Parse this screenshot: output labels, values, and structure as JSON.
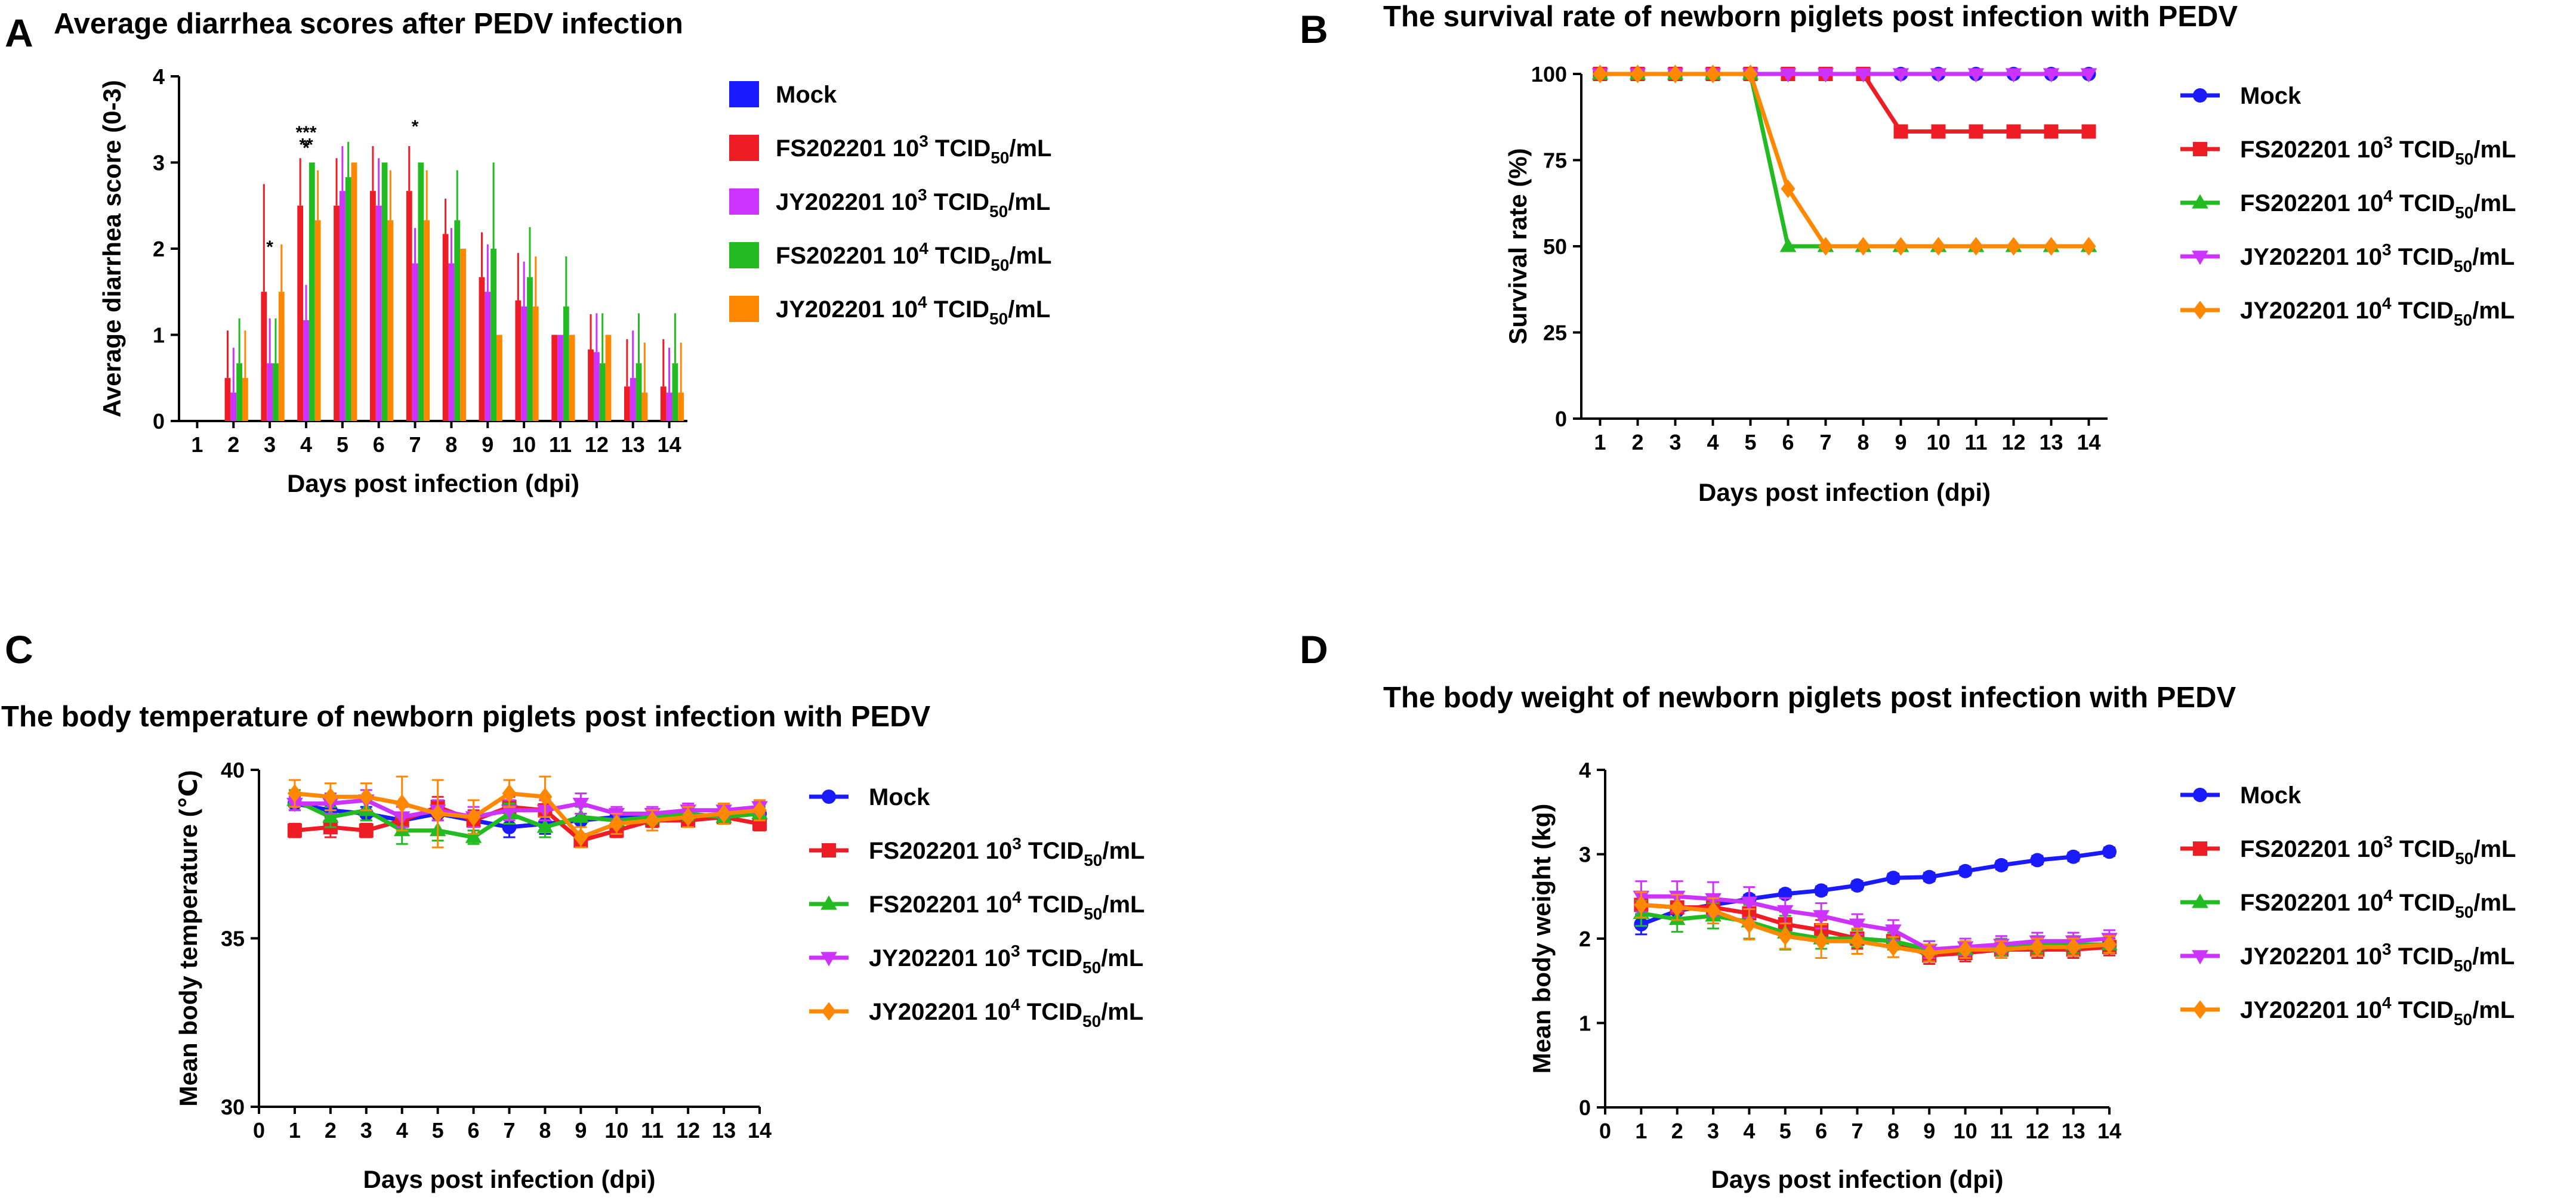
{
  "colors": {
    "mock": "#1a1aff",
    "fs3": "#ee1c25",
    "jy3": "#cc33ff",
    "fs4": "#22bb22",
    "jy4": "#ff8800"
  },
  "chart_data": [
    {
      "panel": "A",
      "type": "bar",
      "title": "Average diarrhea scores after PEDV infection",
      "xlabel": "Days post infection (dpi)",
      "ylabel": "Average diarrhea score (0-3)",
      "ylim": [
        0,
        4
      ],
      "yticks": [
        "0",
        "1",
        "2",
        "3",
        "4"
      ],
      "categories": [
        "1",
        "2",
        "3",
        "4",
        "5",
        "6",
        "7",
        "8",
        "9",
        "10",
        "11",
        "12",
        "13",
        "14"
      ],
      "series": [
        {
          "key": "mock",
          "prefix": "Mock",
          "exp": "",
          "unit": "",
          "values": [
            0,
            0,
            0,
            0,
            0,
            0,
            0,
            0,
            0,
            0,
            0,
            0,
            0,
            0
          ],
          "errors": [
            0,
            0,
            0,
            0,
            0,
            0,
            0,
            0,
            0,
            0,
            0,
            0,
            0,
            0
          ]
        },
        {
          "key": "fs3",
          "prefix": "FS202201 10",
          "exp": "3",
          "unit": " TCID",
          "sub": "50",
          "suffix": "/mL",
          "values": [
            0,
            0.5,
            1.5,
            2.5,
            2.5,
            2.67,
            2.67,
            2.17,
            1.67,
            1.4,
            1.0,
            0.83,
            0.4,
            0.4
          ],
          "errors": [
            0,
            0.55,
            1.25,
            0.55,
            0.55,
            0.52,
            0.52,
            0.41,
            0.52,
            0.55,
            0,
            0.41,
            0.55,
            0.55
          ]
        },
        {
          "key": "jy3",
          "prefix": "JY202201 10",
          "exp": "3",
          "unit": " TCID",
          "sub": "50",
          "suffix": "/mL",
          "values": [
            0,
            0.33,
            0.67,
            1.17,
            2.67,
            2.5,
            1.83,
            1.83,
            1.5,
            1.33,
            1.0,
            0.8,
            0.5,
            0.33
          ],
          "errors": [
            0,
            0.52,
            0.52,
            0.41,
            0.52,
            0.55,
            0.41,
            0.41,
            0.55,
            0.52,
            0,
            0.45,
            0.55,
            0.52
          ]
        },
        {
          "key": "fs4",
          "prefix": "FS202201 10",
          "exp": "4",
          "unit": " TCID",
          "sub": "50",
          "suffix": "/mL",
          "values": [
            0,
            0.67,
            0.67,
            3.0,
            2.83,
            3.0,
            3.0,
            2.33,
            2.0,
            1.67,
            1.33,
            0.67,
            0.67,
            0.67
          ],
          "errors": [
            0,
            0.52,
            0.52,
            0,
            0.41,
            0,
            0,
            0.58,
            1.0,
            0.58,
            0.58,
            0.58,
            0.58,
            0.58
          ]
        },
        {
          "key": "jy4",
          "prefix": "JY202201 10",
          "exp": "4",
          "unit": " TCID",
          "sub": "50",
          "suffix": "/mL",
          "values": [
            0,
            0.5,
            1.5,
            2.33,
            3.0,
            2.33,
            2.33,
            2.0,
            1.0,
            1.33,
            1.0,
            1.0,
            0.33,
            0.33
          ],
          "errors": [
            0,
            0.55,
            0.55,
            0.58,
            0,
            0.58,
            0.58,
            0,
            0,
            0.58,
            0,
            0,
            0.58,
            0.58
          ]
        }
      ],
      "annotations": [
        {
          "text": "*",
          "day": "3",
          "y": 1.95
        },
        {
          "text": "***",
          "day": "4",
          "y": 3.28
        },
        {
          "text": "**",
          "day": "4",
          "y": 3.14
        },
        {
          "text": "*",
          "day": "4",
          "y": 3.1
        },
        {
          "text": "*",
          "day": "7",
          "y": 3.35
        }
      ]
    },
    {
      "panel": "B",
      "type": "line",
      "title": "The survival rate of newborn piglets post infection with PEDV",
      "xlabel": "Days post infection (dpi)",
      "ylabel": "Survival rate (%)",
      "ylim": [
        0,
        100
      ],
      "yticks": [
        "0",
        "25",
        "50",
        "75",
        "100"
      ],
      "x": [
        "1",
        "2",
        "3",
        "4",
        "5",
        "6",
        "7",
        "8",
        "9",
        "10",
        "11",
        "12",
        "13",
        "14"
      ],
      "series": [
        {
          "key": "mock",
          "marker": "circle",
          "prefix": "Mock",
          "exp": "",
          "values": [
            100,
            100,
            100,
            100,
            100,
            100,
            100,
            100,
            100,
            100,
            100,
            100,
            100,
            100
          ]
        },
        {
          "key": "fs3",
          "marker": "square",
          "prefix": "FS202201 10",
          "exp": "3",
          "unit": " TCID",
          "sub": "50",
          "suffix": "/mL",
          "values": [
            100,
            100,
            100,
            100,
            100,
            100,
            100,
            100,
            83.3,
            83.3,
            83.3,
            83.3,
            83.3,
            83.3
          ]
        },
        {
          "key": "fs4",
          "marker": "triangle-up",
          "prefix": "FS202201 10",
          "exp": "4",
          "unit": " TCID",
          "sub": "50",
          "suffix": "/mL",
          "values": [
            100,
            100,
            100,
            100,
            100,
            50,
            50,
            50,
            50,
            50,
            50,
            50,
            50,
            50
          ]
        },
        {
          "key": "jy3",
          "marker": "triangle-down",
          "prefix": "JY202201 10",
          "exp": "3",
          "unit": " TCID",
          "sub": "50",
          "suffix": "/mL",
          "values": [
            100,
            100,
            100,
            100,
            100,
            100,
            100,
            100,
            100,
            100,
            100,
            100,
            100,
            100
          ]
        },
        {
          "key": "jy4",
          "marker": "diamond",
          "prefix": "JY202201 10",
          "exp": "4",
          "unit": " TCID",
          "sub": "50",
          "suffix": "/mL",
          "values": [
            100,
            100,
            100,
            100,
            100,
            66.7,
            50,
            50,
            50,
            50,
            50,
            50,
            50,
            50
          ]
        }
      ]
    },
    {
      "panel": "C",
      "type": "line",
      "title": "The body temperature of newborn piglets post infection with PEDV",
      "xlabel": "Days post infection (dpi)",
      "ylabel": "Mean body temperature (℃)",
      "ylim": [
        30,
        40
      ],
      "xlim": [
        0,
        14
      ],
      "yticks": [
        "30",
        "35",
        "40"
      ],
      "xticks": [
        "0",
        "1",
        "2",
        "3",
        "4",
        "5",
        "6",
        "7",
        "8",
        "9",
        "10",
        "11",
        "12",
        "13",
        "14"
      ],
      "x": [
        1,
        2,
        3,
        4,
        5,
        6,
        7,
        8,
        9,
        10,
        11,
        12,
        13,
        14
      ],
      "series": [
        {
          "key": "mock",
          "marker": "circle",
          "prefix": "Mock",
          "exp": "",
          "values": [
            39.0,
            38.8,
            38.7,
            38.5,
            38.7,
            38.5,
            38.3,
            38.4,
            38.5,
            38.6,
            38.6,
            38.6,
            38.7,
            38.7
          ],
          "errors": [
            0.2,
            0.2,
            0.2,
            0.2,
            0.2,
            0.2,
            0.3,
            0.3,
            0.2,
            0.2,
            0.2,
            0.2,
            0.2,
            0.2
          ]
        },
        {
          "key": "fs3",
          "marker": "square",
          "prefix": "FS202201 10",
          "exp": "3",
          "unit": " TCID",
          "sub": "50",
          "suffix": "/mL",
          "values": [
            38.2,
            38.3,
            38.2,
            38.5,
            38.9,
            38.5,
            38.9,
            38.8,
            37.9,
            38.2,
            38.5,
            38.5,
            38.6,
            38.4
          ],
          "errors": [
            0.2,
            0.3,
            0.2,
            0.2,
            0.3,
            0.3,
            0.3,
            0.3,
            0.2,
            0.2,
            0.2,
            0.2,
            0.2,
            0.2
          ]
        },
        {
          "key": "fs4",
          "marker": "triangle-up",
          "prefix": "FS202201 10",
          "exp": "4",
          "unit": " TCID",
          "sub": "50",
          "suffix": "/mL",
          "values": [
            39.1,
            38.6,
            38.8,
            38.2,
            38.2,
            38.0,
            38.7,
            38.3,
            38.6,
            38.5,
            38.6,
            38.7,
            38.6,
            38.7
          ],
          "errors": [
            0.3,
            0.3,
            0.3,
            0.4,
            0.3,
            0.2,
            0.3,
            0.3,
            0.3,
            0.2,
            0.2,
            0.2,
            0.2,
            0.2
          ]
        },
        {
          "key": "jy3",
          "marker": "triangle-down",
          "prefix": "JY202201 10",
          "exp": "3",
          "unit": " TCID",
          "sub": "50",
          "suffix": "/mL",
          "values": [
            39.0,
            39.0,
            39.1,
            38.6,
            38.8,
            38.6,
            38.8,
            38.8,
            39.0,
            38.7,
            38.7,
            38.8,
            38.8,
            38.9
          ],
          "errors": [
            0.2,
            0.3,
            0.3,
            0.3,
            0.3,
            0.3,
            0.3,
            0.3,
            0.3,
            0.2,
            0.2,
            0.2,
            0.2,
            0.2
          ]
        },
        {
          "key": "jy4",
          "marker": "diamond",
          "prefix": "JY202201 10",
          "exp": "4",
          "unit": " TCID",
          "sub": "50",
          "suffix": "/mL",
          "values": [
            39.3,
            39.2,
            39.2,
            39.0,
            38.7,
            38.6,
            39.3,
            39.2,
            38.0,
            38.4,
            38.5,
            38.6,
            38.7,
            38.8
          ],
          "errors": [
            0.4,
            0.4,
            0.4,
            0.8,
            1.0,
            0.5,
            0.4,
            0.6,
            0.3,
            0.3,
            0.3,
            0.3,
            0.3,
            0.3
          ]
        }
      ]
    },
    {
      "panel": "D",
      "type": "line",
      "title": "The body weight of newborn piglets post infection with PEDV",
      "xlabel": "Days post infection (dpi)",
      "ylabel": "Mean body weight (kg)",
      "ylim": [
        0,
        4
      ],
      "xlim": [
        0,
        14
      ],
      "yticks": [
        "0",
        "1",
        "2",
        "3",
        "4"
      ],
      "xticks": [
        "0",
        "1",
        "2",
        "3",
        "4",
        "5",
        "6",
        "7",
        "8",
        "9",
        "10",
        "11",
        "12",
        "13",
        "14"
      ],
      "x": [
        1,
        2,
        3,
        4,
        5,
        6,
        7,
        8,
        9,
        10,
        11,
        12,
        13,
        14
      ],
      "series": [
        {
          "key": "mock",
          "marker": "circle",
          "prefix": "Mock",
          "exp": "",
          "values": [
            2.17,
            2.33,
            2.4,
            2.47,
            2.53,
            2.57,
            2.63,
            2.72,
            2.73,
            2.8,
            2.87,
            2.93,
            2.97,
            3.03
          ],
          "errors": [
            0.12,
            0.1,
            0.08,
            0.05,
            0.05,
            0.05,
            0.05,
            0.05,
            0.05,
            0.05,
            0.05,
            0.05,
            0.05,
            0.05
          ]
        },
        {
          "key": "fs3",
          "marker": "square",
          "prefix": "FS202201 10",
          "exp": "3",
          "unit": " TCID",
          "sub": "50",
          "suffix": "/mL",
          "values": [
            2.4,
            2.37,
            2.37,
            2.3,
            2.17,
            2.1,
            2.0,
            1.97,
            1.8,
            1.83,
            1.87,
            1.87,
            1.87,
            1.9
          ],
          "errors": [
            0.15,
            0.15,
            0.15,
            0.15,
            0.15,
            0.12,
            0.12,
            0.1,
            0.1,
            0.1,
            0.1,
            0.1,
            0.1,
            0.1
          ]
        },
        {
          "key": "fs4",
          "marker": "triangle-up",
          "prefix": "FS202201 10",
          "exp": "4",
          "unit": " TCID",
          "sub": "50",
          "suffix": "/mL",
          "values": [
            2.3,
            2.23,
            2.27,
            2.2,
            2.07,
            2.0,
            2.0,
            1.97,
            1.87,
            1.87,
            1.9,
            1.93,
            1.93,
            1.93
          ],
          "errors": [
            0.15,
            0.15,
            0.15,
            0.2,
            0.2,
            0.12,
            0.1,
            0.1,
            0.1,
            0.1,
            0.1,
            0.1,
            0.1,
            0.1
          ]
        },
        {
          "key": "jy3",
          "marker": "triangle-down",
          "prefix": "JY202201 10",
          "exp": "3",
          "unit": " TCID",
          "sub": "50",
          "suffix": "/mL",
          "values": [
            2.5,
            2.5,
            2.47,
            2.43,
            2.33,
            2.27,
            2.17,
            2.1,
            1.87,
            1.9,
            1.93,
            1.97,
            1.97,
            2.0
          ],
          "errors": [
            0.18,
            0.18,
            0.2,
            0.18,
            0.15,
            0.15,
            0.12,
            0.12,
            0.1,
            0.1,
            0.1,
            0.1,
            0.1,
            0.1
          ]
        },
        {
          "key": "jy4",
          "marker": "diamond",
          "prefix": "JY202201 10",
          "exp": "4",
          "unit": " TCID",
          "sub": "50",
          "suffix": "/mL",
          "values": [
            2.4,
            2.37,
            2.33,
            2.17,
            2.03,
            1.97,
            1.97,
            1.9,
            1.83,
            1.87,
            1.87,
            1.9,
            1.9,
            1.93
          ],
          "errors": [
            0.15,
            0.15,
            0.15,
            0.18,
            0.15,
            0.2,
            0.15,
            0.12,
            0.1,
            0.1,
            0.1,
            0.1,
            0.1,
            0.1
          ]
        }
      ]
    }
  ]
}
